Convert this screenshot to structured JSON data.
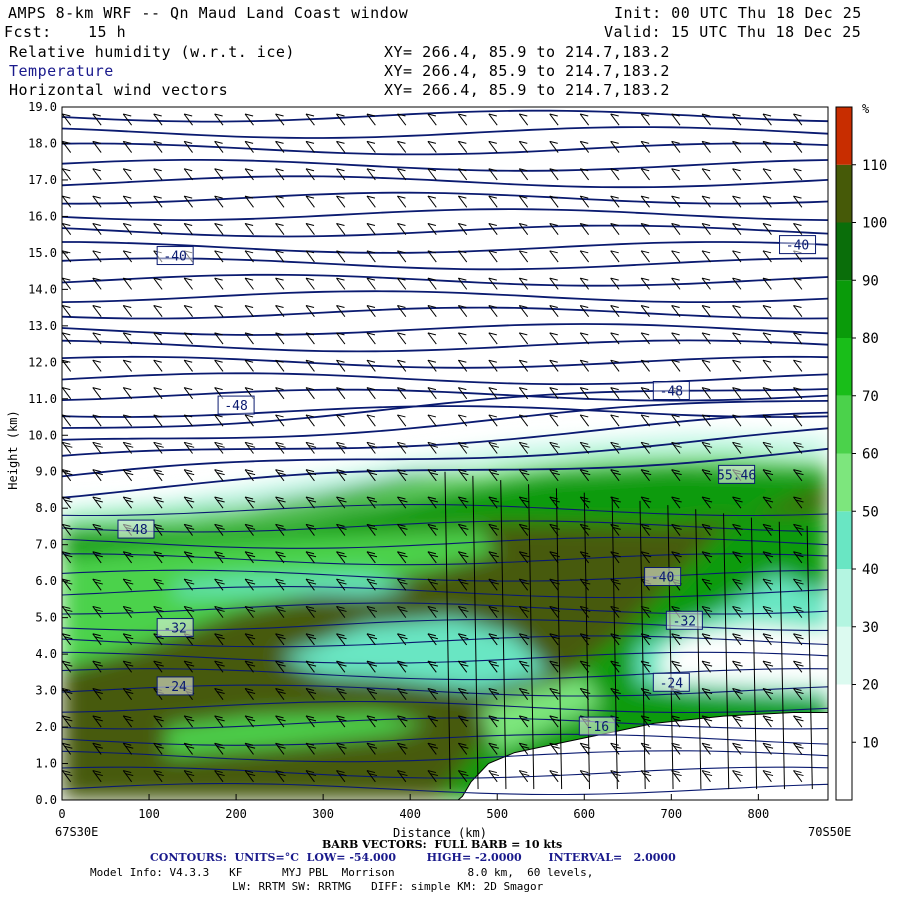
{
  "header": {
    "title": "AMPS 8-km WRF -- Qn Maud Land Coast window",
    "fcst_label": "Fcst:",
    "fcst_value": "15 h",
    "init": "Init: 00 UTC Thu 18 Dec 25",
    "valid": "Valid: 15 UTC Thu 18 Dec 25",
    "fields": [
      {
        "name": "Relative humidity (w.r.t. ice)",
        "xy": "XY= 266.4, 85.9 to 214.7,183.2"
      },
      {
        "name": "Temperature",
        "xy": "XY= 266.4, 85.9 to 214.7,183.2"
      },
      {
        "name": "Horizontal wind vectors",
        "xy": "XY= 266.4, 85.9 to 214.7,183.2"
      }
    ]
  },
  "chart_data": {
    "type": "heatmap",
    "xlabel": "Distance (km)",
    "ylabel": "Height (km)",
    "xlim": [
      0,
      880
    ],
    "ylim": [
      0,
      19
    ],
    "x_ticks": [
      "0",
      "100",
      "200",
      "300",
      "400",
      "500",
      "600",
      "700",
      "800"
    ],
    "y_ticks": [
      "0.0",
      "1.0",
      "2.0",
      "3.0",
      "4.0",
      "5.0",
      "6.0",
      "7.0",
      "8.0",
      "9.0",
      "10.0",
      "11.0",
      "12.0",
      "13.0",
      "14.0",
      "15.0",
      "16.0",
      "17.0",
      "18.0",
      "19.0"
    ],
    "left_endpoint": "67S30E",
    "right_endpoint": "70S50E",
    "colorbar": {
      "unit": "%",
      "labels": [
        "10",
        "20",
        "30",
        "40",
        "50",
        "60",
        "70",
        "80",
        "90",
        "100",
        "110"
      ],
      "colors": [
        "#ffffff",
        "#ffffff",
        "#dcfaf0",
        "#b4f5e1",
        "#69e6c3",
        "#7de67d",
        "#4bd24b",
        "#19be19",
        "#0a9b0a",
        "#0a6e0a",
        "#465a08",
        "#c82d00"
      ]
    },
    "temperature_contour_labels": [
      {
        "text": "-40",
        "x": 130,
        "y": 14.9
      },
      {
        "text": "-40",
        "x": 845,
        "y": 15.2
      },
      {
        "text": "-48",
        "x": 200,
        "y": 10.8
      },
      {
        "text": "-48",
        "x": 700,
        "y": 11.2
      },
      {
        "text": "-48",
        "x": 85,
        "y": 7.4
      },
      {
        "text": "55.46",
        "x": 775,
        "y": 8.9
      },
      {
        "text": "-40",
        "x": 690,
        "y": 6.1
      },
      {
        "text": "-32",
        "x": 130,
        "y": 4.7
      },
      {
        "text": "-32",
        "x": 715,
        "y": 4.9
      },
      {
        "text": "-24",
        "x": 130,
        "y": 3.1
      },
      {
        "text": "-24",
        "x": 700,
        "y": 3.2
      },
      {
        "text": "-16",
        "x": 615,
        "y": 2.0
      }
    ],
    "terrain_height_km": [
      [
        0,
        0
      ],
      [
        420,
        0
      ],
      [
        460,
        0.1
      ],
      [
        470,
        0.5
      ],
      [
        490,
        1.0
      ],
      [
        520,
        1.3
      ],
      [
        560,
        1.5
      ],
      [
        600,
        1.7
      ],
      [
        640,
        1.9
      ],
      [
        680,
        2.1
      ],
      [
        720,
        2.2
      ],
      [
        760,
        2.3
      ],
      [
        800,
        2.35
      ],
      [
        840,
        2.4
      ],
      [
        880,
        2.4
      ]
    ]
  },
  "footer": {
    "barb_title": "BARB VECTORS:  FULL BARB = 10 kts",
    "contours": "CONTOURS:  UNITS=°C  LOW= -54.000        HIGH= -2.0000       INTERVAL=   2.0000",
    "model_line1": "Model Info: V4.3.3   KF      MYJ PBL  Morrison           8.0 km,  60 levels,",
    "model_line2": "LW: RRTM SW: RRTMG   DIFF: simple KM: 2D Smagor"
  }
}
